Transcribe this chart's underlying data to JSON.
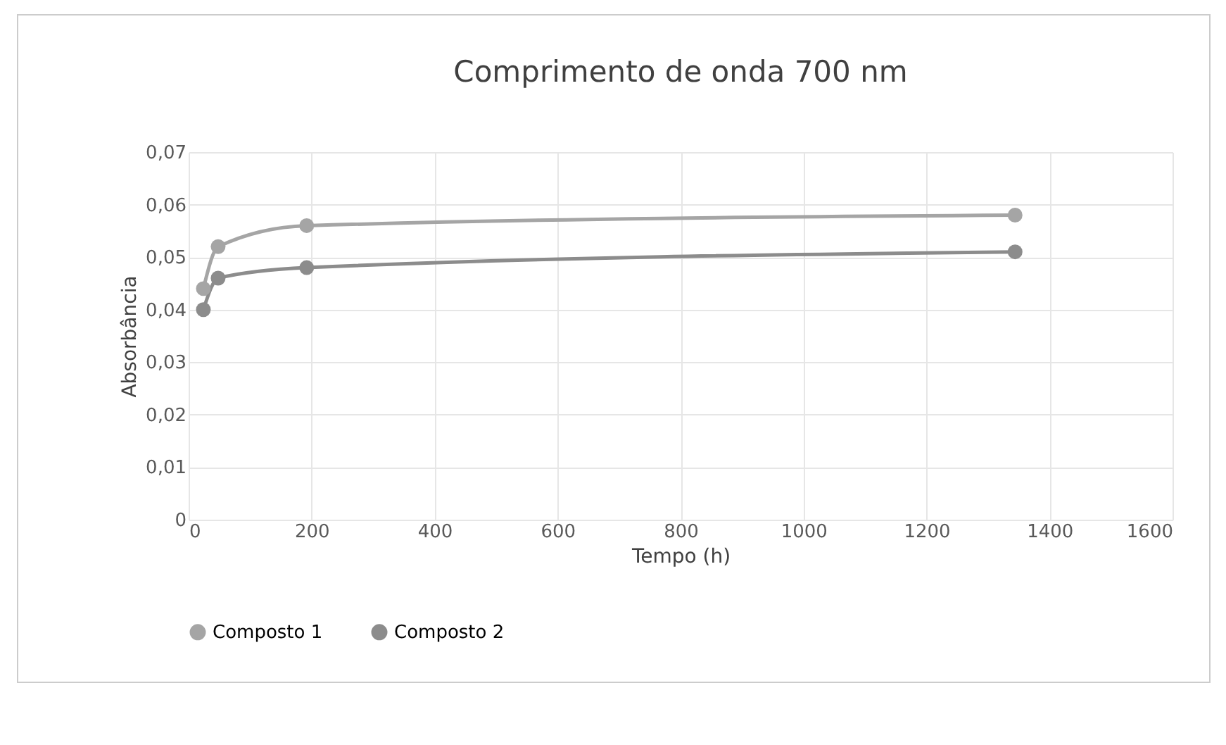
{
  "chart_data": {
    "type": "line",
    "title": "Comprimento de onda 700 nm",
    "xlabel": "Tempo (h)",
    "ylabel": "Absorbância",
    "x": [
      24,
      48,
      192,
      1344
    ],
    "series": [
      {
        "name": "Composto 1",
        "color": "#a5a5a5",
        "values": [
          0.044,
          0.052,
          0.056,
          0.058
        ]
      },
      {
        "name": "Composto 2",
        "color": "#8c8c8c",
        "values": [
          0.04,
          0.046,
          0.048,
          0.051
        ]
      }
    ],
    "xlim": [
      0,
      1600
    ],
    "xticks": [
      0,
      200,
      400,
      600,
      800,
      1000,
      1200,
      1400,
      1600
    ],
    "ylim": [
      0,
      0.07
    ],
    "yticks": [
      {
        "value": 0,
        "label": "0"
      },
      {
        "value": 0.01,
        "label": "0,01"
      },
      {
        "value": 0.02,
        "label": "0,02"
      },
      {
        "value": 0.03,
        "label": "0,03"
      },
      {
        "value": 0.04,
        "label": "0,04"
      },
      {
        "value": 0.05,
        "label": "0,05"
      },
      {
        "value": 0.06,
        "label": "0,06"
      },
      {
        "value": 0.07,
        "label": "0,07"
      }
    ],
    "grid": true,
    "legend": "bottom",
    "marker": "circle",
    "line_style": "solid"
  }
}
